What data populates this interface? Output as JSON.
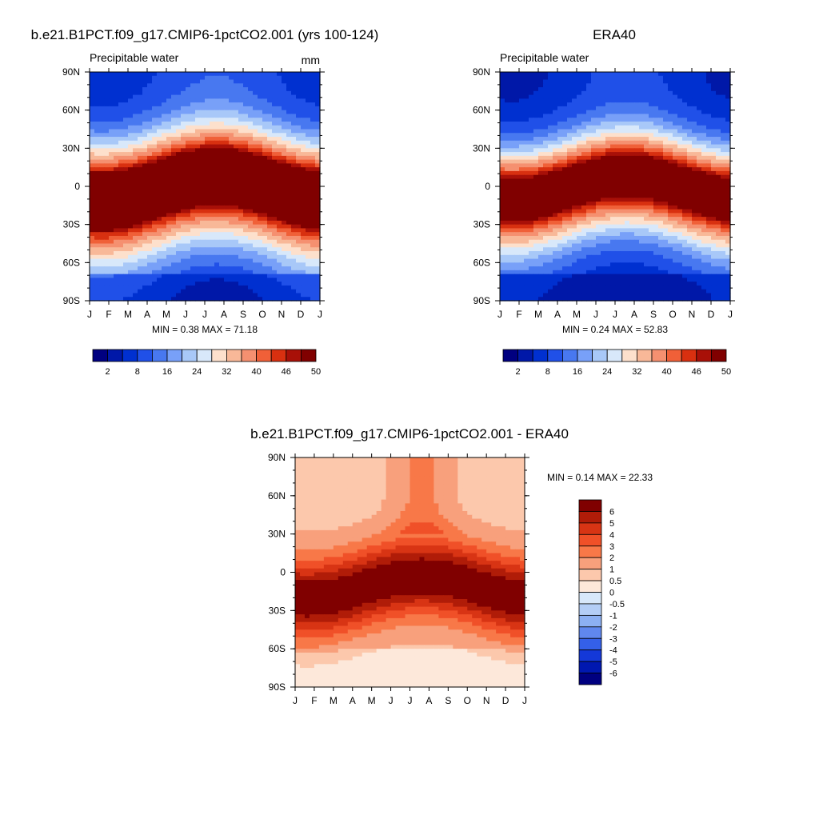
{
  "chart_data": [
    {
      "type": "heatmap",
      "id": "model",
      "title": "b.e21.B1PCT.f09_g17.CMIP6-1pctCO2.001 (yrs 100-124)",
      "left_label": "Precipitable water",
      "right_label": "mm",
      "x_ticklabels": [
        "J",
        "F",
        "M",
        "A",
        "M",
        "J",
        "J",
        "A",
        "S",
        "O",
        "N",
        "D",
        "J"
      ],
      "y_ticklabels": [
        "90N",
        "60N",
        "30N",
        "0",
        "30S",
        "60S",
        "90S"
      ],
      "y_range": [
        -90,
        90
      ],
      "stats": "MIN =   0.38 MAX =  71.18",
      "min": 0.38,
      "max": 71.18,
      "model": "model",
      "colorbar": {
        "orientation": "horizontal",
        "colors": [
          "#000080",
          "#0018A8",
          "#0030D0",
          "#2050E8",
          "#4878F0",
          "#78A0F8",
          "#A8C8F8",
          "#D8E8FA",
          "#FDE0CC",
          "#F8B898",
          "#F59070",
          "#F06038",
          "#D83010",
          "#A81008",
          "#800000"
        ],
        "labels": [
          "2",
          "8",
          "16",
          "24",
          "32",
          "40",
          "46",
          "50"
        ]
      }
    },
    {
      "type": "heatmap",
      "id": "obs",
      "title": "ERA40",
      "left_label": "Precipitable water",
      "right_label": "",
      "x_ticklabels": [
        "J",
        "F",
        "M",
        "A",
        "M",
        "J",
        "J",
        "A",
        "S",
        "O",
        "N",
        "D",
        "J"
      ],
      "y_ticklabels": [
        "90N",
        "60N",
        "30N",
        "0",
        "30S",
        "60S",
        "90S"
      ],
      "y_range": [
        -90,
        90
      ],
      "stats": "MIN =   0.24 MAX =  52.83",
      "min": 0.24,
      "max": 52.83,
      "model": "obs",
      "colorbar": {
        "orientation": "horizontal",
        "colors": [
          "#000080",
          "#0018A8",
          "#0030D0",
          "#2050E8",
          "#4878F0",
          "#78A0F8",
          "#A8C8F8",
          "#D8E8FA",
          "#FDE0CC",
          "#F8B898",
          "#F59070",
          "#F06038",
          "#D83010",
          "#A81008",
          "#800000"
        ],
        "labels": [
          "2",
          "8",
          "16",
          "24",
          "32",
          "40",
          "46",
          "50"
        ]
      }
    },
    {
      "type": "heatmap",
      "id": "diff",
      "title": "b.e21.B1PCT.f09_g17.CMIP6-1pctCO2.001 - ERA40",
      "x_ticklabels": [
        "J",
        "F",
        "M",
        "A",
        "M",
        "J",
        "J",
        "A",
        "S",
        "O",
        "N",
        "D",
        "J"
      ],
      "y_ticklabels": [
        "90N",
        "60N",
        "30N",
        "0",
        "30S",
        "60S",
        "90S"
      ],
      "y_range": [
        -90,
        90
      ],
      "stats": "MIN =   0.14 MAX =  22.33",
      "min": 0.14,
      "max": 22.33,
      "model": "diff",
      "colorbar": {
        "orientation": "vertical",
        "colors": [
          "#800000",
          "#B01C08",
          "#D83414",
          "#F05028",
          "#F87848",
          "#F8A07C",
          "#FCC8AC",
          "#FDE8DA",
          "#D8E8FA",
          "#B4CEF6",
          "#8CB0F2",
          "#6088EE",
          "#3460E8",
          "#1438D8",
          "#0018B0",
          "#000080"
        ],
        "labels": [
          "6",
          "5",
          "4",
          "3",
          "2",
          "1",
          "0.5",
          "0",
          "-0.5",
          "-1",
          "-2",
          "-3",
          "-4",
          "-5",
          "-6"
        ]
      }
    }
  ]
}
